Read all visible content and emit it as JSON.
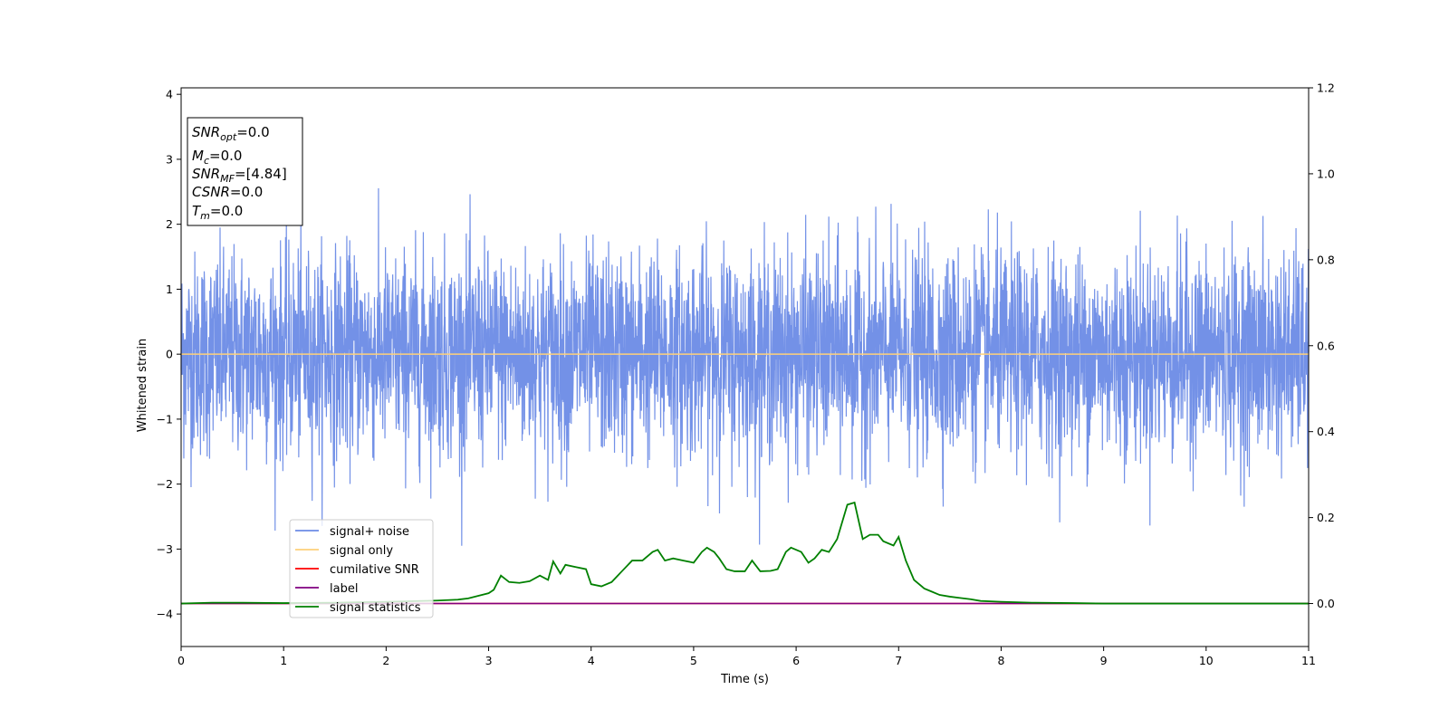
{
  "chart_data": {
    "type": "line",
    "xlabel": "Time (s)",
    "ylabel": "Whitened strain",
    "xlim": [
      0,
      11
    ],
    "ylim": [
      -4.5,
      4.1
    ],
    "y2lim": [
      -0.1,
      1.2
    ],
    "xticks": [
      "0",
      "1",
      "2",
      "3",
      "4",
      "5",
      "6",
      "7",
      "8",
      "9",
      "10",
      "11"
    ],
    "yticks": [
      "−4",
      "−3",
      "−2",
      "−1",
      "0",
      "1",
      "2",
      "3",
      "4"
    ],
    "y2ticks": [
      "0.0",
      "0.2",
      "0.4",
      "0.6",
      "0.8",
      "1.0",
      "1.2"
    ],
    "grid": false,
    "legend_position": "lower-left",
    "series": [
      {
        "name": "signal+ noise",
        "color": "#6b8be6",
        "axis": "left",
        "description_values": {
          "x_range": [
            0,
            11
          ],
          "typical_amplitude": 1.3,
          "max": 2.6,
          "min": -2.95
        }
      },
      {
        "name": "signal only",
        "color": "#fdd17a",
        "axis": "left",
        "x": [
          0,
          11
        ],
        "y": [
          0,
          0
        ]
      },
      {
        "name": "cumilative SNR",
        "color": "#ff0000",
        "axis": "right",
        "x": [
          0,
          11
        ],
        "y": [
          0,
          0
        ]
      },
      {
        "name": "label",
        "color": "#800080",
        "axis": "right",
        "x": [
          0,
          11
        ],
        "y": [
          0,
          0
        ]
      },
      {
        "name": "signal statistics",
        "color": "#008000",
        "axis": "right",
        "x": [
          0.0,
          0.3,
          0.6,
          1.0,
          1.5,
          2.0,
          2.5,
          2.7,
          2.8,
          2.9,
          3.0,
          3.05,
          3.12,
          3.2,
          3.3,
          3.4,
          3.5,
          3.58,
          3.63,
          3.7,
          3.75,
          3.85,
          3.95,
          4.0,
          4.1,
          4.2,
          4.3,
          4.4,
          4.5,
          4.6,
          4.65,
          4.72,
          4.8,
          4.9,
          5.0,
          5.08,
          5.13,
          5.2,
          5.25,
          5.32,
          5.4,
          5.5,
          5.57,
          5.65,
          5.75,
          5.82,
          5.9,
          5.95,
          6.05,
          6.12,
          6.18,
          6.25,
          6.32,
          6.4,
          6.5,
          6.57,
          6.65,
          6.72,
          6.8,
          6.85,
          6.95,
          7.0,
          7.07,
          7.15,
          7.25,
          7.32,
          7.4,
          7.5,
          7.6,
          7.7,
          7.8,
          8.0,
          8.3,
          8.7,
          9.0,
          10.0,
          11.0
        ],
        "y": [
          0.0,
          0.002,
          0.002,
          0.001,
          0.002,
          0.004,
          0.007,
          0.009,
          0.012,
          0.018,
          0.024,
          0.032,
          0.065,
          0.05,
          0.048,
          0.052,
          0.065,
          0.055,
          0.098,
          0.07,
          0.09,
          0.085,
          0.08,
          0.045,
          0.04,
          0.05,
          0.075,
          0.1,
          0.1,
          0.12,
          0.125,
          0.1,
          0.105,
          0.1,
          0.095,
          0.12,
          0.13,
          0.12,
          0.105,
          0.08,
          0.075,
          0.075,
          0.1,
          0.075,
          0.076,
          0.08,
          0.12,
          0.13,
          0.12,
          0.095,
          0.105,
          0.125,
          0.12,
          0.15,
          0.23,
          0.235,
          0.15,
          0.16,
          0.16,
          0.145,
          0.135,
          0.155,
          0.1,
          0.055,
          0.035,
          0.028,
          0.02,
          0.016,
          0.013,
          0.01,
          0.006,
          0.004,
          0.002,
          0.001,
          0.0,
          0.0,
          0.0
        ]
      }
    ],
    "annotation_box": {
      "lines": [
        {
          "main": "SNR",
          "sub": "opt",
          "rest": "=0.0"
        },
        {
          "main": "M",
          "sub": "c",
          "rest": "=0.0"
        },
        {
          "main": "SNR",
          "sub": "MF",
          "rest": "=[4.84]"
        },
        {
          "main": "CSNR",
          "sub": "",
          "rest": "=0.0"
        },
        {
          "main": "T",
          "sub": "m",
          "rest": "=0.0"
        }
      ]
    }
  }
}
